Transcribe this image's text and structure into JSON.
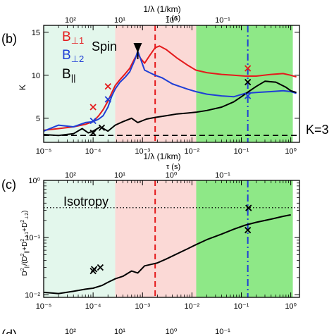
{
  "chart_data": [
    {
      "panel_label": "(b)",
      "type": "line",
      "xlabel": "1/λ (1/km)",
      "top_xlabel": "τ (s)",
      "ylabel": "K",
      "xscale": "log",
      "xlim": [
        1e-05,
        1.5
      ],
      "ylim": [
        2.2,
        15.8
      ],
      "xticks": [
        "10⁻⁵",
        "10⁻⁴",
        "10⁻³",
        "10⁻²",
        "10⁻¹",
        "10⁰"
      ],
      "top_xticks": [
        "10²",
        "10¹",
        "10⁰",
        "10⁻¹"
      ],
      "yticks": [
        5,
        10,
        15
      ],
      "regions": [
        {
          "x": [
            1e-05,
            0.00028
          ],
          "color": "#e3f7ec"
        },
        {
          "x": [
            0.00028,
            0.0122
          ],
          "color": "#fbd9d6"
        },
        {
          "x": [
            0.0122,
            1.1
          ],
          "color": "#8ee887"
        }
      ],
      "vlines": [
        {
          "x": 0.0018,
          "color": "#e41a1c",
          "style": "dashed"
        },
        {
          "x": 0.135,
          "color": "#1f3fd6",
          "style": "dashdot"
        }
      ],
      "hline": {
        "y": 3,
        "label": "K=3"
      },
      "annotation": {
        "text": "Spin",
        "arrow_to": [
          0.0008,
          12.6
        ]
      },
      "legend": [
        "B⊥1",
        "B⊥2",
        "B||"
      ],
      "legend_colors": [
        "#e41a1c",
        "#1f3fd6",
        "#000000"
      ],
      "series": [
        {
          "name": "B⊥1",
          "color": "#e41a1c",
          "x": [
            1e-05,
            2e-05,
            4e-05,
            7e-05,
            0.0001,
            0.00013,
            0.00016,
            0.0002,
            0.00024,
            0.00028,
            0.00035,
            0.00045,
            0.00055,
            0.0007,
            0.0008,
            0.0009,
            0.0011,
            0.0014,
            0.0018,
            0.0022,
            0.003,
            0.005,
            0.008,
            0.012,
            0.02,
            0.04,
            0.07,
            0.12,
            0.2,
            0.4,
            0.7,
            1.0,
            1.3
          ],
          "y": [
            3.6,
            3.8,
            4.0,
            4.3,
            4.6,
            5.3,
            6.0,
            7.0,
            8.0,
            8.8,
            9.5,
            10.2,
            10.8,
            12.0,
            12.5,
            12.0,
            11.4,
            12.3,
            13.2,
            13.4,
            13.0,
            12.0,
            11.2,
            10.6,
            10.3,
            10.1,
            10.0,
            9.9,
            9.9,
            10.1,
            10.2,
            10.0,
            9.8
          ]
        },
        {
          "name": "B⊥2",
          "color": "#1f3fd6",
          "x": [
            1e-05,
            2e-05,
            4e-05,
            7e-05,
            0.0001,
            0.00013,
            0.00016,
            0.0002,
            0.00024,
            0.00028,
            0.00035,
            0.00045,
            0.00055,
            0.0007,
            0.0008,
            0.0009,
            0.0011,
            0.0014,
            0.0018,
            0.0025,
            0.004,
            0.008,
            0.012,
            0.02,
            0.04,
            0.07,
            0.12,
            0.2,
            0.4,
            0.7,
            1.0,
            1.3
          ],
          "y": [
            3.5,
            4.2,
            4.0,
            4.5,
            4.6,
            4.9,
            5.3,
            6.3,
            7.6,
            8.4,
            9.2,
            9.8,
            10.4,
            11.8,
            12.8,
            12.0,
            10.6,
            10.3,
            10.0,
            9.7,
            9.0,
            8.4,
            8.1,
            7.8,
            7.6,
            7.5,
            7.9,
            8.0,
            8.1,
            8.2,
            8.1,
            7.9
          ]
        },
        {
          "name": "B||",
          "color": "#000000",
          "x": [
            1e-05,
            2e-05,
            4e-05,
            6e-05,
            8e-05,
            0.0001,
            0.00014,
            0.0002,
            0.00028,
            0.0004,
            0.0006,
            0.0008,
            0.0012,
            0.0018,
            0.003,
            0.005,
            0.008,
            0.012,
            0.02,
            0.04,
            0.07,
            0.1,
            0.14,
            0.2,
            0.3,
            0.5,
            0.8,
            1.0,
            1.3
          ],
          "y": [
            3.1,
            3.0,
            3.2,
            3.8,
            3.3,
            3.5,
            4.0,
            3.5,
            4.2,
            4.6,
            5.0,
            4.5,
            4.9,
            5.1,
            5.3,
            5.5,
            5.6,
            5.7,
            5.9,
            6.3,
            6.9,
            7.5,
            8.1,
            8.7,
            9.3,
            9.2,
            8.6,
            8.2,
            8.0
          ]
        }
      ],
      "markers": [
        {
          "x": 0.0001,
          "y": 6.3,
          "color": "#e41a1c"
        },
        {
          "x": 0.0002,
          "y": 8.7,
          "color": "#e41a1c"
        },
        {
          "x": 0.135,
          "y": 10.8,
          "color": "#e41a1c"
        },
        {
          "x": 0.0001,
          "y": 4.7,
          "color": "#1f3fd6"
        },
        {
          "x": 0.0002,
          "y": 7.2,
          "color": "#1f3fd6"
        },
        {
          "x": 0.135,
          "y": 7.6,
          "color": "#1f3fd6"
        },
        {
          "x": 0.0001,
          "y": 3.3,
          "color": "#000000"
        },
        {
          "x": 0.00015,
          "y": 3.9,
          "color": "#000000"
        },
        {
          "x": 0.135,
          "y": 9.2,
          "color": "#000000"
        }
      ]
    },
    {
      "panel_label": "(c)",
      "type": "line",
      "xlabel": "1/λ (1/km)",
      "top_xlabel": "τ (s)",
      "ylabel": "D²||/(D²|| + D²⊥1 + D²⊥2)",
      "xscale": "log",
      "yscale": "log",
      "xlim": [
        1e-05,
        1.5
      ],
      "ylim": [
        0.009,
        1.0
      ],
      "xticks": [
        "10⁻⁵",
        "10⁻⁴",
        "10⁻³",
        "10⁻²",
        "10⁻¹",
        "10⁰"
      ],
      "top_xticks": [
        "10²",
        "10¹",
        "10⁰",
        "10⁻¹"
      ],
      "yticks": [
        "10⁻²",
        "10⁻¹",
        "10⁰"
      ],
      "regions": [
        {
          "x": [
            1e-05,
            0.00028
          ],
          "color": "#e3f7ec"
        },
        {
          "x": [
            0.00028,
            0.0122
          ],
          "color": "#fbd9d6"
        },
        {
          "x": [
            0.0122,
            1.1
          ],
          "color": "#8ee887"
        }
      ],
      "vlines": [
        {
          "x": 0.0018,
          "color": "#e41a1c",
          "style": "dashed"
        },
        {
          "x": 0.135,
          "color": "#1f3fd6",
          "style": "dashdot"
        }
      ],
      "hline": {
        "y": 0.333,
        "label": "Isotropy"
      },
      "series": [
        {
          "name": "B||",
          "color": "#000000",
          "x": [
            1e-05,
            2e-05,
            4e-05,
            7e-05,
            0.0001,
            0.00015,
            0.0002,
            0.00028,
            0.0004,
            0.0006,
            0.0008,
            0.0011,
            0.0015,
            0.002,
            0.003,
            0.005,
            0.008,
            0.012,
            0.02,
            0.04,
            0.07,
            0.12,
            0.2,
            0.4,
            0.7,
            1.0
          ],
          "y": [
            0.011,
            0.0105,
            0.0115,
            0.0125,
            0.013,
            0.0145,
            0.0165,
            0.019,
            0.021,
            0.026,
            0.024,
            0.032,
            0.034,
            0.036,
            0.042,
            0.052,
            0.063,
            0.075,
            0.092,
            0.115,
            0.14,
            0.165,
            0.185,
            0.21,
            0.235,
            0.25
          ]
        }
      ],
      "markers": [
        {
          "x": 0.0001,
          "y": 0.026,
          "color": "#000000"
        },
        {
          "x": 0.000105,
          "y": 0.028,
          "color": "#000000"
        },
        {
          "x": 0.00014,
          "y": 0.03,
          "color": "#000000"
        },
        {
          "x": 0.14,
          "y": 0.33,
          "color": "#000000"
        },
        {
          "x": 0.135,
          "y": 0.135,
          "color": "#000000"
        }
      ]
    }
  ],
  "bottom_partial": {
    "panel_label": "(d)",
    "top_xticks": [
      "10²",
      "10¹",
      "10⁰",
      "10⁻¹"
    ]
  }
}
